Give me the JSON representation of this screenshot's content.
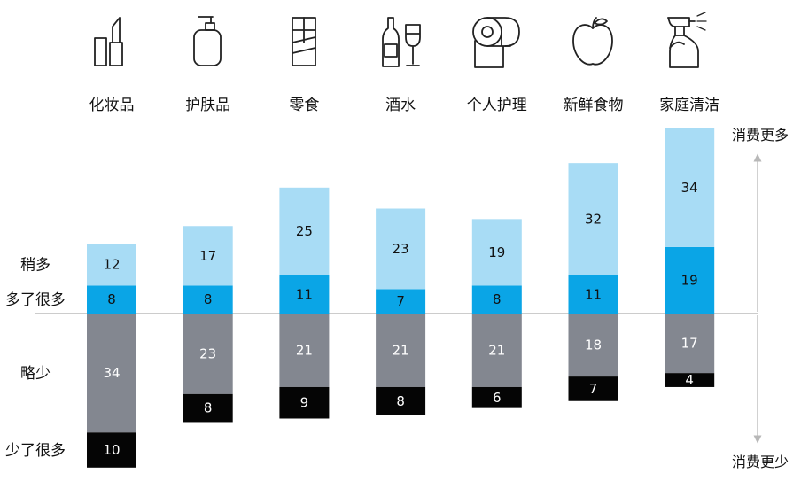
{
  "chart_data": {
    "type": "bar",
    "stacked": true,
    "diverging": true,
    "categories": [
      "化妆品",
      "护肤品",
      "零食",
      "酒水",
      "个人护理",
      "新鲜食物",
      "家庭清洁"
    ],
    "series": [
      {
        "name": "多了很多",
        "direction": "up",
        "color": "#0aa5e6",
        "text_color": "#111111",
        "values": [
          8,
          8,
          11,
          7,
          8,
          11,
          19
        ]
      },
      {
        "name": "稍多",
        "direction": "up",
        "color": "#a8dcf5",
        "text_color": "#111111",
        "values": [
          12,
          17,
          25,
          23,
          19,
          32,
          34
        ]
      },
      {
        "name": "略少",
        "direction": "down",
        "color": "#838790",
        "text_color": "#ffffff",
        "values": [
          34,
          23,
          21,
          21,
          21,
          18,
          17
        ]
      },
      {
        "name": "少了很多",
        "direction": "down",
        "color": "#050505",
        "text_color": "#ffffff",
        "values": [
          10,
          8,
          9,
          8,
          6,
          7,
          4
        ]
      }
    ],
    "icons": [
      "lipstick-icon",
      "pump-bottle-icon",
      "chocolate-bar-icon",
      "wine-bottle-glass-icon",
      "toilet-paper-icon",
      "apple-icon",
      "spray-bottle-icon"
    ],
    "axis_labels": {
      "top": "消费更多",
      "bottom": "消费更少"
    },
    "baseline_color": "#9a9a9a"
  }
}
